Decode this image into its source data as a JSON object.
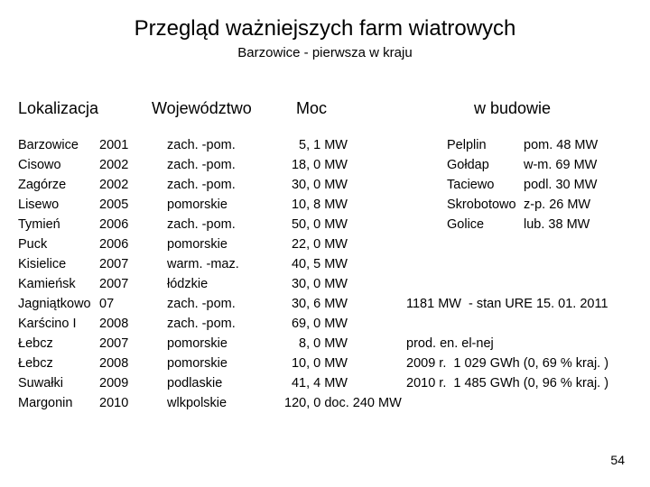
{
  "title": "Przegląd  ważniejszych  farm  wiatrowych",
  "subtitle": "Barzowice - pierwsza w kraju",
  "headers": {
    "h1": "Lokalizacja",
    "h2": "Województwo",
    "h3": "Moc",
    "h4": "w budowie"
  },
  "col1_names": "Barzowice\nCisowo\nZagórze\nLisewo\nTymień\nPuck\nKisielice\nKamieńsk\nJagniątkowo\nKarścino I\nŁebcz\nŁebcz\nSuwałki\nMargonin",
  "col1_years": "2001\n2002\n2002\n2005\n2006\n2006\n2007\n2007\n07\n2008\n2007\n2008\n2009\n2010",
  "col2": "zach. -pom.\nzach. -pom.\nzach. -pom.\npomorskie\nzach. -pom.\npomorskie\nwarm. -maz.\nłódzkie\nzach. -pom.\nzach. -pom.\npomorskie\npomorskie\npodlaskie\nwlkpolskie",
  "col3": "5, 1 MW\n18, 0 MW\n30, 0 MW\n10, 8 MW\n50, 0 MW\n22, 0 MW\n40, 5 MW\n30, 0 MW\n30, 6 MW\n69, 0 MW\n8, 0 MW\n10, 0 MW\n41, 4 MW\n120, 0 doc. 240 MW",
  "build_names": "Pelplin\nGołdap\nTaciewo\nSkrobotowo\nGolice",
  "build_vals": "pom. 48 MW\nw-m. 69 MW\npodl. 30 MW\nz-p. 26 MW\nlub. 38 MW",
  "notes": "1181 MW  - stan URE 15. 01. 2011\n\nprod. en. el-nej\n2009 r.  1 029 GWh (0, 69 % kraj. )\n2010 r.  1 485 GWh (0, 96 % kraj. )",
  "page_number": "54",
  "style": {
    "background_color": "#ffffff",
    "text_color": "#000000",
    "title_fontsize": 24,
    "subtitle_fontsize": 15,
    "header_fontsize": 18,
    "body_fontsize": 14.5,
    "line_height": 22,
    "font_family": "Arial"
  }
}
